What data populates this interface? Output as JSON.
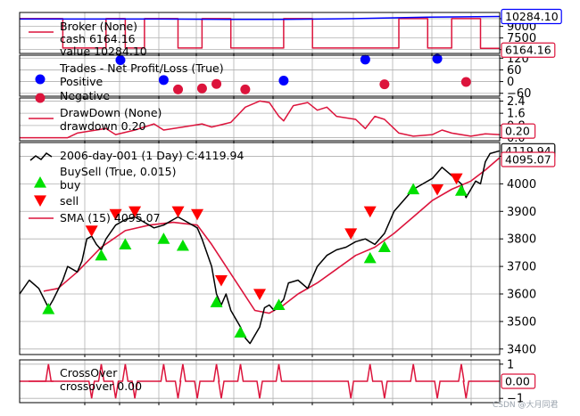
{
  "chart_data": [
    {
      "type": "line",
      "panel": "broker",
      "yticks": [
        "10000",
        "9000",
        "7500",
        "6000"
      ],
      "ylim": [
        5500,
        10800
      ],
      "legend": {
        "title": "Broker (None)",
        "entry": "cash 6164.16",
        "entry2": "value 10284.10"
      },
      "series": [
        {
          "name": "cash",
          "color": "#dc143c",
          "end_label": "6164.16"
        },
        {
          "name": "value",
          "color": "#0000ff",
          "end_label": "10284.10"
        }
      ],
      "cash_pattern": [
        [
          0,
          10000
        ],
        [
          0.09,
          10000
        ],
        [
          0.09,
          6200
        ],
        [
          0.18,
          6200
        ],
        [
          0.18,
          10000
        ],
        [
          0.22,
          10000
        ],
        [
          0.22,
          6200
        ],
        [
          0.26,
          6200
        ],
        [
          0.26,
          10000
        ],
        [
          0.33,
          10000
        ],
        [
          0.33,
          6200
        ],
        [
          0.38,
          6200
        ],
        [
          0.38,
          10000
        ],
        [
          0.44,
          10000
        ],
        [
          0.44,
          6200
        ],
        [
          0.55,
          6200
        ],
        [
          0.55,
          10000
        ],
        [
          0.61,
          10000
        ],
        [
          0.61,
          6200
        ],
        [
          0.79,
          6200
        ],
        [
          0.79,
          10000
        ],
        [
          0.85,
          10000
        ],
        [
          0.85,
          6200
        ],
        [
          0.9,
          6200
        ],
        [
          0.9,
          10000
        ],
        [
          0.96,
          10000
        ],
        [
          0.96,
          6164
        ],
        [
          1,
          6164
        ]
      ],
      "value_pattern": [
        [
          0,
          9950
        ],
        [
          0.3,
          9950
        ],
        [
          0.45,
          9900
        ],
        [
          0.55,
          9900
        ],
        [
          0.7,
          10000
        ],
        [
          0.85,
          10200
        ],
        [
          1,
          10284
        ]
      ]
    },
    {
      "type": "scatter",
      "panel": "trades",
      "yticks": [
        "120",
        "60",
        "0",
        "−60"
      ],
      "ylim": [
        -75,
        135
      ],
      "legend": {
        "title": "Trades - Net Profit/Loss (True)",
        "entry": "Positive",
        "entry2": "Negative"
      },
      "positive": {
        "color": "#0000ff",
        "points": [
          [
            0.21,
            110
          ],
          [
            0.3,
            8
          ],
          [
            0.55,
            5
          ],
          [
            0.72,
            113
          ],
          [
            0.87,
            117
          ]
        ]
      },
      "negative": {
        "color": "#dc143c",
        "points": [
          [
            0.33,
            -40
          ],
          [
            0.38,
            -35
          ],
          [
            0.41,
            -12
          ],
          [
            0.47,
            -40
          ],
          [
            0.76,
            -14
          ],
          [
            0.93,
            -2
          ]
        ]
      }
    },
    {
      "type": "line",
      "panel": "drawdown",
      "yticks": [
        "2.4",
        "1.6",
        "0.8",
        "0.0"
      ],
      "ylim": [
        -0.2,
        2.6
      ],
      "legend": {
        "title": "DrawDown (None)",
        "entry": "drawdown 0.20"
      },
      "series": [
        {
          "name": "drawdown",
          "color": "#dc143c",
          "end_label": "0.20"
        }
      ],
      "points": [
        [
          0,
          0
        ],
        [
          0.1,
          0
        ],
        [
          0.12,
          0.3
        ],
        [
          0.18,
          0.6
        ],
        [
          0.2,
          0.2
        ],
        [
          0.24,
          0.5
        ],
        [
          0.28,
          0.9
        ],
        [
          0.3,
          0.5
        ],
        [
          0.34,
          0.7
        ],
        [
          0.38,
          0.9
        ],
        [
          0.4,
          0.7
        ],
        [
          0.44,
          1.0
        ],
        [
          0.47,
          2.0
        ],
        [
          0.5,
          2.4
        ],
        [
          0.52,
          2.3
        ],
        [
          0.54,
          1.4
        ],
        [
          0.55,
          1.1
        ],
        [
          0.57,
          2.1
        ],
        [
          0.6,
          2.3
        ],
        [
          0.62,
          1.8
        ],
        [
          0.64,
          2.0
        ],
        [
          0.66,
          1.4
        ],
        [
          0.7,
          1.2
        ],
        [
          0.72,
          0.6
        ],
        [
          0.74,
          1.4
        ],
        [
          0.76,
          1.2
        ],
        [
          0.79,
          0.3
        ],
        [
          0.82,
          0.1
        ],
        [
          0.86,
          0.2
        ],
        [
          0.88,
          0.5
        ],
        [
          0.9,
          0.3
        ],
        [
          0.94,
          0.1
        ],
        [
          0.97,
          0.25
        ],
        [
          1,
          0.2
        ]
      ]
    },
    {
      "type": "line",
      "panel": "price",
      "yticks": [
        "4100",
        "4000",
        "3900",
        "3800",
        "3700",
        "3600",
        "3500",
        "3400"
      ],
      "ylim": [
        3380,
        4150
      ],
      "legend": {
        "title": "2006-day-001 (1 Day) C:4119.94",
        "buy_label": "BuySell (True, 0.015)",
        "buy": "buy",
        "sell": "sell",
        "sma": "SMA (15) 4095.07"
      },
      "end_label": "4119.94",
      "sma_end_label": "4095.07",
      "close_color": "#000000",
      "sma_color": "#dc143c",
      "buy_color": "#00e000",
      "sell_color": "#ff0000",
      "close": [
        [
          0,
          3600
        ],
        [
          0.02,
          3650
        ],
        [
          0.04,
          3620
        ],
        [
          0.06,
          3550
        ],
        [
          0.07,
          3580
        ],
        [
          0.09,
          3650
        ],
        [
          0.1,
          3700
        ],
        [
          0.12,
          3680
        ],
        [
          0.13,
          3720
        ],
        [
          0.14,
          3800
        ],
        [
          0.15,
          3810
        ],
        [
          0.16,
          3780
        ],
        [
          0.17,
          3760
        ],
        [
          0.18,
          3800
        ],
        [
          0.2,
          3850
        ],
        [
          0.22,
          3870
        ],
        [
          0.24,
          3880
        ],
        [
          0.26,
          3860
        ],
        [
          0.28,
          3840
        ],
        [
          0.3,
          3850
        ],
        [
          0.32,
          3870
        ],
        [
          0.33,
          3880
        ],
        [
          0.35,
          3860
        ],
        [
          0.37,
          3840
        ],
        [
          0.38,
          3800
        ],
        [
          0.4,
          3700
        ],
        [
          0.41,
          3600
        ],
        [
          0.42,
          3560
        ],
        [
          0.43,
          3600
        ],
        [
          0.44,
          3540
        ],
        [
          0.46,
          3480
        ],
        [
          0.47,
          3440
        ],
        [
          0.48,
          3420
        ],
        [
          0.5,
          3480
        ],
        [
          0.51,
          3550
        ],
        [
          0.52,
          3560
        ],
        [
          0.53,
          3540
        ],
        [
          0.55,
          3580
        ],
        [
          0.56,
          3640
        ],
        [
          0.58,
          3650
        ],
        [
          0.6,
          3620
        ],
        [
          0.62,
          3700
        ],
        [
          0.64,
          3740
        ],
        [
          0.66,
          3760
        ],
        [
          0.68,
          3770
        ],
        [
          0.7,
          3790
        ],
        [
          0.72,
          3800
        ],
        [
          0.74,
          3780
        ],
        [
          0.76,
          3820
        ],
        [
          0.78,
          3900
        ],
        [
          0.8,
          3940
        ],
        [
          0.82,
          3980
        ],
        [
          0.84,
          4000
        ],
        [
          0.86,
          4020
        ],
        [
          0.88,
          4060
        ],
        [
          0.9,
          4030
        ],
        [
          0.92,
          4000
        ],
        [
          0.93,
          3950
        ],
        [
          0.95,
          4010
        ],
        [
          0.96,
          4000
        ],
        [
          0.97,
          4080
        ],
        [
          0.98,
          4110
        ],
        [
          1,
          4120
        ]
      ],
      "sma": [
        [
          0.05,
          3610
        ],
        [
          0.08,
          3620
        ],
        [
          0.12,
          3680
        ],
        [
          0.17,
          3770
        ],
        [
          0.22,
          3830
        ],
        [
          0.27,
          3850
        ],
        [
          0.32,
          3860
        ],
        [
          0.37,
          3850
        ],
        [
          0.4,
          3780
        ],
        [
          0.43,
          3700
        ],
        [
          0.46,
          3620
        ],
        [
          0.49,
          3540
        ],
        [
          0.52,
          3530
        ],
        [
          0.55,
          3560
        ],
        [
          0.58,
          3600
        ],
        [
          0.62,
          3640
        ],
        [
          0.66,
          3690
        ],
        [
          0.7,
          3740
        ],
        [
          0.74,
          3770
        ],
        [
          0.78,
          3820
        ],
        [
          0.82,
          3880
        ],
        [
          0.86,
          3940
        ],
        [
          0.9,
          3980
        ],
        [
          0.94,
          4010
        ],
        [
          0.97,
          4050
        ],
        [
          1,
          4095
        ]
      ],
      "buys": [
        [
          0.06,
          3545
        ],
        [
          0.17,
          3740
        ],
        [
          0.22,
          3780
        ],
        [
          0.3,
          3800
        ],
        [
          0.34,
          3775
        ],
        [
          0.41,
          3570
        ],
        [
          0.46,
          3460
        ],
        [
          0.54,
          3560
        ],
        [
          0.73,
          3730
        ],
        [
          0.76,
          3770
        ],
        [
          0.82,
          3980
        ],
        [
          0.92,
          3975
        ]
      ],
      "sells": [
        [
          0.15,
          3830
        ],
        [
          0.2,
          3890
        ],
        [
          0.24,
          3900
        ],
        [
          0.33,
          3900
        ],
        [
          0.37,
          3890
        ],
        [
          0.42,
          3650
        ],
        [
          0.5,
          3600
        ],
        [
          0.69,
          3820
        ],
        [
          0.73,
          3900
        ],
        [
          0.87,
          3980
        ],
        [
          0.91,
          4020
        ]
      ]
    },
    {
      "type": "line",
      "panel": "crossover",
      "yticks": [
        "1",
        "−1"
      ],
      "ylim": [
        -1.25,
        1.25
      ],
      "legend": {
        "title": "CrossOver",
        "entry": "crossover 0.00"
      },
      "series": [
        {
          "name": "crossover",
          "color": "#dc143c",
          "end_label": "0.00"
        }
      ],
      "spikes": [
        [
          0.06,
          1
        ],
        [
          0.15,
          -1
        ],
        [
          0.17,
          1
        ],
        [
          0.2,
          -1
        ],
        [
          0.22,
          1
        ],
        [
          0.24,
          -1
        ],
        [
          0.3,
          1
        ],
        [
          0.33,
          -1
        ],
        [
          0.34,
          1
        ],
        [
          0.37,
          -1
        ],
        [
          0.41,
          1
        ],
        [
          0.42,
          -1
        ],
        [
          0.46,
          1
        ],
        [
          0.5,
          -1
        ],
        [
          0.54,
          1
        ],
        [
          0.69,
          -1
        ],
        [
          0.73,
          1
        ],
        [
          0.76,
          -1
        ],
        [
          0.82,
          1
        ],
        [
          0.87,
          -1
        ],
        [
          0.92,
          1
        ],
        [
          0.93,
          -1
        ]
      ]
    }
  ],
  "watermark": "CSDN @大月同君"
}
